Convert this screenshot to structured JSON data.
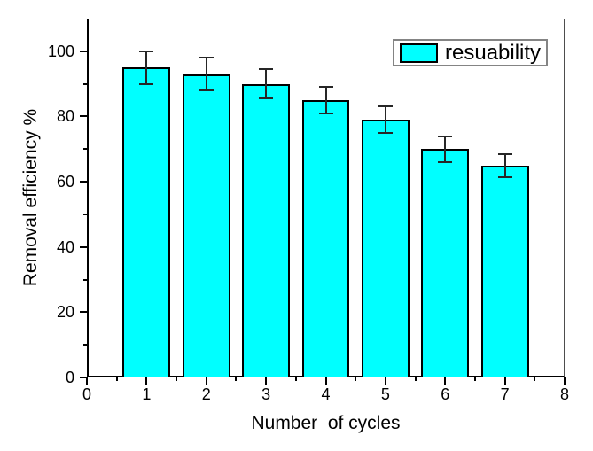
{
  "chart_data": {
    "type": "bar",
    "title": "",
    "xlabel": "Number  of cycles",
    "ylabel": "Removal efficiency %",
    "legend": {
      "label": "resuability",
      "position": "top-right-inside"
    },
    "categories": [
      1,
      2,
      3,
      4,
      5,
      6,
      7
    ],
    "series": [
      {
        "name": "resuability",
        "values": [
          95,
          93,
          90,
          85,
          79,
          70,
          65
        ],
        "errors": [
          5,
          5,
          4.5,
          4,
          4,
          4,
          3.5
        ]
      }
    ],
    "xlim": [
      0,
      8
    ],
    "ylim": [
      0,
      110
    ],
    "x_major_ticks": [
      0,
      1,
      2,
      3,
      4,
      5,
      6,
      7,
      8
    ],
    "x_minor_step": 0.5,
    "y_major_ticks": [
      0,
      20,
      40,
      60,
      80,
      100
    ],
    "y_minor_step": 10,
    "grid": false,
    "bar_width": 0.8,
    "colors": {
      "bar_fill": "#00ffff",
      "bar_border": "#000000",
      "error_bar": "#262626",
      "axis": "#000000",
      "frame": "#4d4d4d",
      "legend_border": "#848484",
      "background": "#ffffff"
    }
  }
}
